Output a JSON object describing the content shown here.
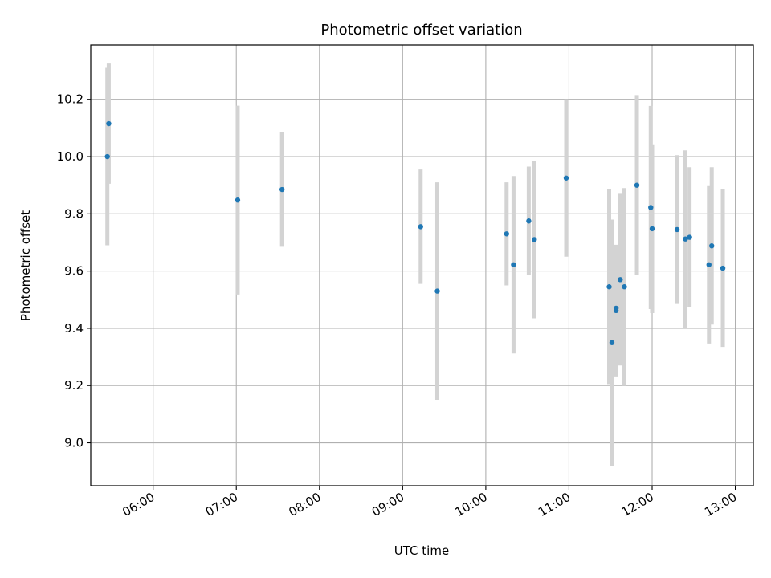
{
  "chart_data": {
    "type": "scatter",
    "title": "Photometric offset variation",
    "xlabel": "UTC time",
    "ylabel": "Photometric offset",
    "x_tick_labels": [
      "06:00",
      "07:00",
      "08:00",
      "09:00",
      "10:00",
      "11:00",
      "12:00",
      "13:00"
    ],
    "x_ticks": [
      "06:00",
      "07:00",
      "08:00",
      "09:00",
      "10:00",
      "11:00",
      "12:00",
      "13:00"
    ],
    "xlim": [
      "05:15",
      "13:13"
    ],
    "y_ticks": [
      9.0,
      9.2,
      9.4,
      9.6,
      9.8,
      10.0,
      10.2
    ],
    "y_tick_labels": [
      "9.0",
      "9.2",
      "9.4",
      "9.6",
      "9.8",
      "10.0",
      "10.2"
    ],
    "ylim": [
      8.85,
      10.39
    ],
    "grid": true,
    "marker_color": "#1f77b4",
    "errorbar_color": "#d3d3d3",
    "points": [
      {
        "x": "05:27",
        "y": 10.0,
        "yerr": 0.31
      },
      {
        "x": "05:28",
        "y": 10.115,
        "yerr": 0.21
      },
      {
        "x": "07:01",
        "y": 9.848,
        "yerr": 0.33
      },
      {
        "x": "07:33",
        "y": 9.885,
        "yerr": 0.2
      },
      {
        "x": "09:13",
        "y": 9.755,
        "yerr": 0.2
      },
      {
        "x": "09:25",
        "y": 9.53,
        "yerr": 0.38
      },
      {
        "x": "10:15",
        "y": 9.73,
        "yerr": 0.18
      },
      {
        "x": "10:20",
        "y": 9.622,
        "yerr": 0.31
      },
      {
        "x": "10:31",
        "y": 9.775,
        "yerr": 0.19
      },
      {
        "x": "10:35",
        "y": 9.71,
        "yerr": 0.275
      },
      {
        "x": "10:58",
        "y": 9.925,
        "yerr": 0.275
      },
      {
        "x": "11:29",
        "y": 9.545,
        "yerr": 0.34
      },
      {
        "x": "11:31",
        "y": 9.35,
        "yerr": 0.43
      },
      {
        "x": "11:34",
        "y": 9.47,
        "yerr": 0.22
      },
      {
        "x": "11:34",
        "y": 9.462,
        "yerr": 0.23
      },
      {
        "x": "11:37",
        "y": 9.57,
        "yerr": 0.3
      },
      {
        "x": "11:40",
        "y": 9.545,
        "yerr": 0.345
      },
      {
        "x": "11:49",
        "y": 9.9,
        "yerr": 0.315
      },
      {
        "x": "11:59",
        "y": 9.822,
        "yerr": 0.355
      },
      {
        "x": "12:00",
        "y": 9.748,
        "yerr": 0.295
      },
      {
        "x": "12:18",
        "y": 9.745,
        "yerr": 0.26
      },
      {
        "x": "12:24",
        "y": 9.712,
        "yerr": 0.31
      },
      {
        "x": "12:27",
        "y": 9.718,
        "yerr": 0.245
      },
      {
        "x": "12:41",
        "y": 9.622,
        "yerr": 0.275
      },
      {
        "x": "12:43",
        "y": 9.688,
        "yerr": 0.275
      },
      {
        "x": "12:51",
        "y": 9.61,
        "yerr": 0.275
      }
    ]
  }
}
